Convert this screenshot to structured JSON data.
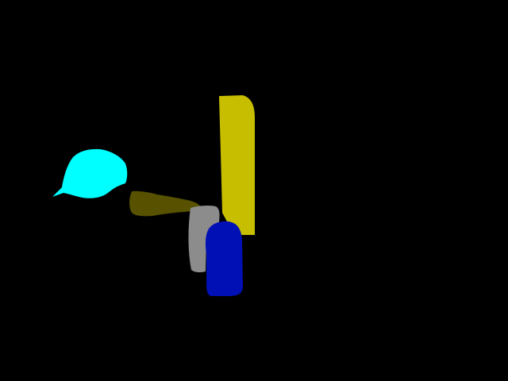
{
  "scene": {
    "background": "#000000",
    "regions": [
      {
        "name": "cyan-cap-region",
        "color": "#00FFFF"
      },
      {
        "name": "olive-bar-region",
        "color": "#575100"
      },
      {
        "name": "yellow-tall-region",
        "color": "#C8BE00"
      },
      {
        "name": "gray-block-region",
        "color": "#8C8C8C"
      },
      {
        "name": "blue-block-region",
        "color": "#0010B4"
      }
    ]
  }
}
